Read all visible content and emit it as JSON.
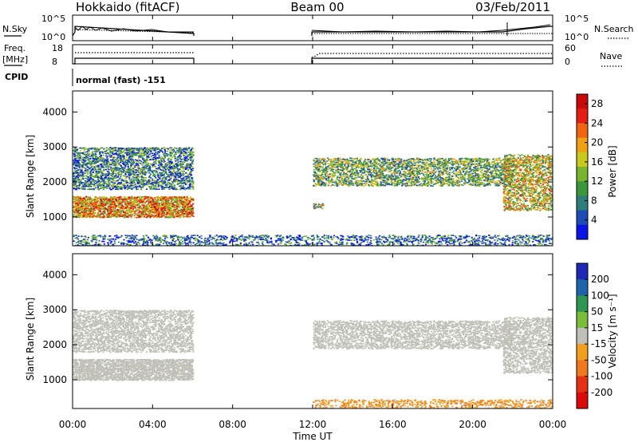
{
  "header": {
    "title": "Hokkaido (fitACF)",
    "beam": "Beam 00",
    "date": "03/Feb/2011"
  },
  "noise_panel": {
    "left_label": "N.Sky",
    "right_label": "N.Search",
    "left_ticks": [
      "10^5",
      "10^0"
    ],
    "right_ticks": [
      "10^5",
      "10^0"
    ]
  },
  "freq_panel": {
    "left_label_line1": "Freq.",
    "left_label_line2": "[MHz]",
    "left_ticks": [
      "18",
      "8"
    ],
    "right_label": "Nave",
    "right_ticks": [
      "60",
      "0"
    ]
  },
  "cpid": {
    "label": "CPID",
    "value": "normal (fast) -151"
  },
  "panels": {
    "power": {
      "ylabel": "Slant Range [km]",
      "yticks": [
        "4000",
        "3000",
        "2000",
        "1000"
      ],
      "cbar_label": "Power [dB]"
    },
    "velocity": {
      "ylabel": "Slant Range [km]",
      "yticks": [
        "4000",
        "3000",
        "2000",
        "1000"
      ],
      "cbar_label": "Velocity [m s⁻¹]"
    }
  },
  "xaxis": {
    "label": "Time UT",
    "ticks": [
      "00:00",
      "04:00",
      "08:00",
      "12:00",
      "16:00",
      "20:00",
      "00:00"
    ]
  },
  "chart_data": [
    {
      "type": "heatmap",
      "title": "Power",
      "xlabel": "Time UT",
      "ylabel": "Slant Range [km]",
      "xlim_hours": [
        0,
        24
      ],
      "ylim": [
        180,
        4600
      ],
      "colorbar": {
        "label": "Power [dB]",
        "ticks": [
          4,
          8,
          12,
          16,
          20,
          24,
          28
        ],
        "range": [
          0,
          30
        ],
        "colors": [
          "#0a14e6",
          "#1e4bb4",
          "#2d7d7d",
          "#3c963c",
          "#78b42d",
          "#c8c81e",
          "#f0a014",
          "#f06414",
          "#e61e14",
          "#c80a0a"
        ]
      },
      "data_gap_hours": [
        6,
        12
      ],
      "echo_regions": [
        {
          "t": [
            0.0,
            6.0
          ],
          "range_km": [
            1000,
            1600
          ],
          "power_db": 20
        },
        {
          "t": [
            0.0,
            6.0
          ],
          "range_km": [
            1800,
            3000
          ],
          "power_db": 8
        },
        {
          "t": [
            12.0,
            22.0
          ],
          "range_km": [
            1900,
            2700
          ],
          "power_db": 12
        },
        {
          "t": [
            12.0,
            12.5
          ],
          "range_km": [
            1250,
            1400
          ],
          "power_db": 14
        },
        {
          "t": [
            21.5,
            24.0
          ],
          "range_km": [
            1200,
            2800
          ],
          "power_db": 16
        },
        {
          "t": [
            0.0,
            24.0
          ],
          "range_km": [
            200,
            500
          ],
          "power_db": 6
        }
      ]
    },
    {
      "type": "heatmap",
      "title": "Velocity",
      "xlabel": "Time UT",
      "ylabel": "Slant Range [km]",
      "xlim_hours": [
        0,
        24
      ],
      "ylim": [
        180,
        4600
      ],
      "colorbar": {
        "label": "Velocity [m s⁻¹]",
        "ticks": [
          200,
          100,
          50,
          15,
          -15,
          -50,
          -100,
          -200
        ],
        "colors": [
          "#1e28b4",
          "#1e64aa",
          "#2d9650",
          "#78be3c",
          "#c0c0b8",
          "#f0a01e",
          "#f0781e",
          "#e63214",
          "#dc0a0a"
        ]
      },
      "data_gap_hours": [
        6,
        12
      ],
      "echo_regions": [
        {
          "t": [
            0.0,
            6.0
          ],
          "range_km": [
            1000,
            1600
          ],
          "velocity": 0
        },
        {
          "t": [
            0.0,
            6.0
          ],
          "range_km": [
            1800,
            3000
          ],
          "velocity": 0
        },
        {
          "t": [
            12.0,
            22.0
          ],
          "range_km": [
            1900,
            2700
          ],
          "velocity": 0
        },
        {
          "t": [
            21.5,
            24.0
          ],
          "range_km": [
            1200,
            2800
          ],
          "velocity": 0
        },
        {
          "t": [
            12.0,
            24.0
          ],
          "range_km": [
            200,
            450
          ],
          "velocity": -40
        }
      ]
    }
  ]
}
